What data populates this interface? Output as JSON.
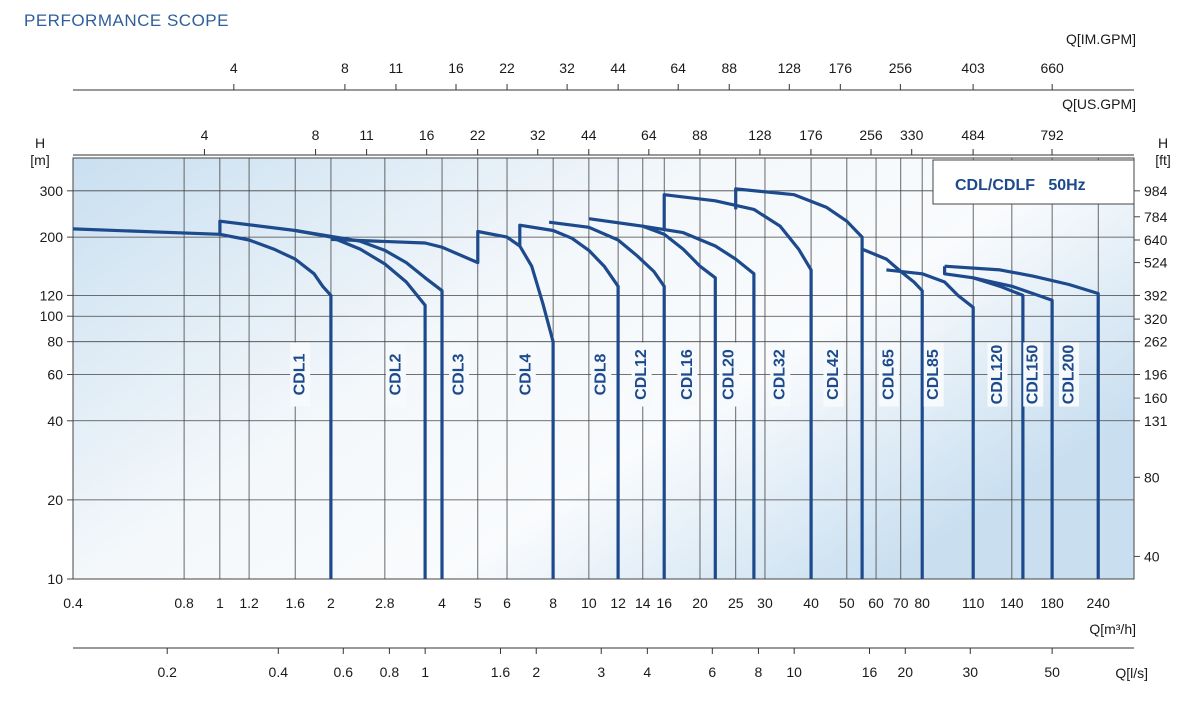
{
  "title": "PERFORMANCE SCOPE",
  "chart_data": {
    "type": "line",
    "legend": "CDL/CDLF   50Hz",
    "colors": {
      "curve": "#1d4a8c",
      "grid": "#444444",
      "title": "#2f5f9b"
    },
    "x_scale": "log",
    "y_scale": "log",
    "xlabel": "Q[m³/h]",
    "xlim": [
      0.4,
      300
    ],
    "ylim": [
      10,
      400
    ],
    "y_left_label": "H\n[m]",
    "y_right_label": "H\n[ft]",
    "x_ticks": [
      "0.4",
      "0.8",
      "1",
      "1.2",
      "1.6",
      "2",
      "2.8",
      "4",
      "5",
      "6",
      "8",
      "10",
      "12",
      "14",
      "16",
      "20",
      "25",
      "30",
      "40",
      "50",
      "60",
      "70",
      "80",
      "110",
      "140",
      "180",
      "240"
    ],
    "y_ticks_m": [
      "10",
      "20",
      "40",
      "60",
      "80",
      "100",
      "120",
      "200",
      "300"
    ],
    "y_ticks_ft": [
      "40",
      "80",
      "131",
      "160",
      "196",
      "262",
      "320",
      "392",
      "524",
      "640",
      "784",
      "984"
    ],
    "y_ticks_ft_values": [
      12.19,
      24.38,
      40,
      48.8,
      60,
      80,
      97.5,
      120,
      160,
      195,
      239,
      300
    ],
    "top_im_gpm": {
      "label": "Q[IM.GPM]",
      "ticks": [
        "4",
        "8",
        "11",
        "16",
        "22",
        "32",
        "44",
        "64",
        "88",
        "128",
        "176",
        "256",
        "403",
        "660"
      ]
    },
    "top_us_gpm": {
      "label": "Q[US.GPM]",
      "ticks": [
        "4",
        "8",
        "11",
        "16",
        "22",
        "32",
        "44",
        "64",
        "88",
        "128",
        "176",
        "256",
        "330",
        "484",
        "792"
      ]
    },
    "bottom_ls": {
      "label": "Q[l/s]",
      "ticks": [
        "0.2",
        "0.4",
        "0.6",
        "0.8",
        "1",
        "1.6",
        "2",
        "3",
        "4",
        "6",
        "8",
        "10",
        "16",
        "20",
        "30",
        "50"
      ]
    },
    "series": [
      {
        "name": "CDL1",
        "label_q": 1.65,
        "points": [
          [
            0.4,
            215
          ],
          [
            1.0,
            205
          ],
          [
            1.2,
            195
          ],
          [
            1.4,
            180
          ],
          [
            1.6,
            165
          ],
          [
            1.8,
            145
          ],
          [
            1.9,
            130
          ],
          [
            2.0,
            120
          ],
          [
            2.0,
            10
          ]
        ]
      },
      {
        "name": "CDL2",
        "label_q": 3.0,
        "points": [
          [
            1.0,
            205
          ],
          [
            1.0,
            230
          ],
          [
            1.6,
            212
          ],
          [
            2.0,
            200
          ],
          [
            2.4,
            180
          ],
          [
            2.8,
            158
          ],
          [
            3.2,
            135
          ],
          [
            3.6,
            110
          ],
          [
            3.6,
            10
          ]
        ]
      },
      {
        "name": "CDL3",
        "label_q": 4.45,
        "points": [
          [
            1.6,
            212
          ],
          [
            2.4,
            193
          ],
          [
            2.8,
            178
          ],
          [
            3.2,
            160
          ],
          [
            3.6,
            140
          ],
          [
            4.0,
            125
          ],
          [
            4.0,
            10
          ]
        ]
      },
      {
        "name": "CDL4",
        "label_q": 6.75,
        "points": [
          [
            2.0,
            196
          ],
          [
            3.6,
            190
          ],
          [
            4.0,
            183
          ],
          [
            5.0,
            160
          ],
          [
            5.0,
            210
          ],
          [
            6.0,
            200
          ],
          [
            6.5,
            185
          ],
          [
            7.0,
            155
          ],
          [
            7.5,
            112
          ],
          [
            8.0,
            80
          ],
          [
            8.0,
            10
          ]
        ]
      },
      {
        "name": "CDL8",
        "label_q": 10.8,
        "points": [
          [
            6.5,
            185
          ],
          [
            6.5,
            222
          ],
          [
            8.0,
            212
          ],
          [
            9.0,
            198
          ],
          [
            10,
            178
          ],
          [
            11,
            155
          ],
          [
            12,
            130
          ],
          [
            12,
            10
          ]
        ]
      },
      {
        "name": "CDL12",
        "label_q": 13.9,
        "points": [
          [
            7.8,
            228
          ],
          [
            10,
            218
          ],
          [
            12,
            195
          ],
          [
            13.5,
            170
          ],
          [
            15,
            148
          ],
          [
            16,
            130
          ],
          [
            16,
            10
          ]
        ]
      },
      {
        "name": "CDL16",
        "label_q": 18.5,
        "points": [
          [
            10,
            235
          ],
          [
            14,
            220
          ],
          [
            16,
            205
          ],
          [
            18,
            180
          ],
          [
            20,
            155
          ],
          [
            22,
            140
          ],
          [
            22,
            10
          ]
        ]
      },
      {
        "name": "CDL20",
        "label_q": 24.0,
        "points": [
          [
            14,
            220
          ],
          [
            18,
            208
          ],
          [
            22,
            185
          ],
          [
            25,
            165
          ],
          [
            28,
            145
          ],
          [
            28,
            10
          ]
        ]
      },
      {
        "name": "CDL32",
        "label_q": 33.0,
        "points": [
          [
            16,
            215
          ],
          [
            16,
            290
          ],
          [
            22,
            275
          ],
          [
            28,
            255
          ],
          [
            33,
            220
          ],
          [
            37,
            180
          ],
          [
            40,
            150
          ],
          [
            40,
            10
          ]
        ]
      },
      {
        "name": "CDL42",
        "label_q": 46.0,
        "points": [
          [
            25,
            255
          ],
          [
            25,
            305
          ],
          [
            36,
            290
          ],
          [
            44,
            260
          ],
          [
            50,
            230
          ],
          [
            55,
            200
          ],
          [
            55,
            10
          ]
        ]
      },
      {
        "name": "CDL65",
        "label_q": 65.0,
        "points": [
          [
            55,
            180
          ],
          [
            64,
            165
          ],
          [
            70,
            148
          ],
          [
            76,
            135
          ],
          [
            80,
            125
          ],
          [
            80,
            10
          ]
        ]
      },
      {
        "name": "CDL85",
        "label_q": 86.0,
        "points": [
          [
            64,
            150
          ],
          [
            80,
            145
          ],
          [
            92,
            135
          ],
          [
            100,
            120
          ],
          [
            110,
            108
          ],
          [
            110,
            10
          ]
        ]
      },
      {
        "name": "CDL120",
        "label_q": 128,
        "points": [
          [
            92,
            155
          ],
          [
            92,
            145
          ],
          [
            110,
            140
          ],
          [
            130,
            130
          ],
          [
            150,
            120
          ],
          [
            150,
            10
          ]
        ]
      },
      {
        "name": "CDL150",
        "label_q": 160,
        "points": [
          [
            110,
            140
          ],
          [
            140,
            130
          ],
          [
            165,
            120
          ],
          [
            180,
            115
          ],
          [
            180,
            10
          ]
        ]
      },
      {
        "name": "CDL200",
        "label_q": 200,
        "points": [
          [
            92,
            155
          ],
          [
            130,
            150
          ],
          [
            160,
            142
          ],
          [
            200,
            132
          ],
          [
            240,
            122
          ],
          [
            240,
            10
          ]
        ]
      }
    ]
  }
}
